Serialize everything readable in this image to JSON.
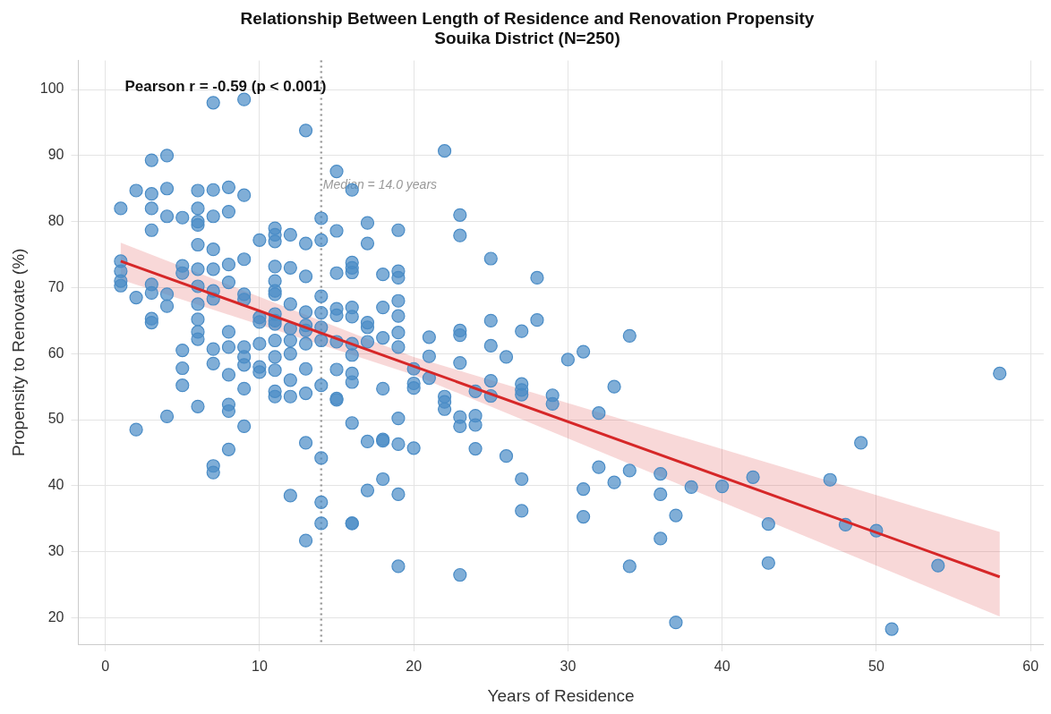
{
  "chart_data": {
    "type": "scatter",
    "title": "Relationship Between Length of Residence and Renovation Propensity",
    "subtitle": "Souika District (N=250)",
    "xlabel": "Years of Residence",
    "ylabel": "Propensity to Renovate (%)",
    "annotations": [
      "Pearson r = -0.59 (p < 0.001)"
    ],
    "xlim": [
      -1.75,
      60.85
    ],
    "ylim": [
      16,
      104.4
    ],
    "xticks": [
      0,
      10,
      20,
      30,
      40,
      50,
      60
    ],
    "yticks": [
      20,
      30,
      40,
      50,
      60,
      70,
      80,
      90,
      100
    ],
    "grid": true,
    "legend": false,
    "ref_lines": [
      {
        "axis": "x",
        "value": 14,
        "label": "Median = 14.0 years",
        "color": "#999999",
        "line_style": "dotted"
      }
    ],
    "series": [
      {
        "color": "#4a8cc6",
        "marker": "circle",
        "x": [
          1,
          1,
          1,
          1,
          1,
          2,
          2,
          2,
          3,
          3,
          3,
          3,
          3,
          3,
          3,
          3,
          4,
          4,
          4,
          4,
          4,
          4,
          5,
          5,
          5,
          5,
          5,
          5,
          6,
          6,
          6,
          6,
          6,
          6,
          6,
          6,
          6,
          6,
          6,
          6,
          7,
          7,
          7,
          7,
          7,
          7,
          7,
          7,
          7,
          7,
          7,
          8,
          8,
          8,
          8,
          8,
          8,
          8,
          8,
          8,
          8,
          9,
          9,
          9,
          9,
          9,
          9,
          9,
          9,
          9,
          9,
          10,
          10,
          10,
          10,
          10,
          10,
          11,
          11,
          11,
          11,
          11,
          11,
          11,
          11,
          11,
          11,
          11,
          11,
          11,
          11,
          11,
          12,
          12,
          12,
          12,
          12,
          12,
          12,
          12,
          12,
          13,
          13,
          13,
          13,
          13,
          13,
          13,
          13,
          13,
          13,
          13,
          14,
          14,
          14,
          14,
          14,
          14,
          14,
          14,
          14,
          14,
          15,
          15,
          15,
          15,
          15,
          15,
          15,
          15,
          15,
          16,
          16,
          16,
          16,
          16,
          16,
          16,
          16,
          16,
          16,
          16,
          16,
          16,
          17,
          17,
          17,
          17,
          17,
          17,
          17,
          18,
          18,
          18,
          18,
          18,
          18,
          18,
          19,
          19,
          19,
          19,
          19,
          19,
          19,
          19,
          19,
          19,
          19,
          20,
          20,
          20,
          20,
          21,
          21,
          21,
          22,
          22,
          22,
          22,
          23,
          23,
          23,
          23,
          23,
          23,
          23,
          23,
          24,
          24,
          24,
          24,
          25,
          25,
          25,
          25,
          25,
          26,
          26,
          27,
          27,
          27,
          27,
          27,
          27,
          28,
          28,
          29,
          29,
          30,
          31,
          31,
          31,
          32,
          32,
          33,
          33,
          34,
          34,
          34,
          36,
          36,
          36,
          37,
          37,
          38,
          40,
          42,
          43,
          43,
          47,
          48,
          49,
          50,
          51,
          54,
          58
        ],
        "values": [
          82,
          74,
          72.5,
          71,
          70.3,
          84.7,
          68.5,
          48.5,
          89.3,
          84.2,
          82,
          78.7,
          70.5,
          69.2,
          65.3,
          64.7,
          90,
          85,
          80.8,
          69,
          67.2,
          50.5,
          80.6,
          73.3,
          72.2,
          60.5,
          57.8,
          55.2,
          84.7,
          82,
          80,
          79.5,
          76.5,
          72.8,
          70.2,
          67.5,
          65.2,
          63.3,
          62.2,
          52,
          98,
          84.8,
          80.8,
          75.8,
          72.8,
          69.5,
          68.3,
          60.7,
          58.5,
          43,
          42,
          85.2,
          81.5,
          73.5,
          70.8,
          63.3,
          61,
          56.8,
          52.3,
          51.3,
          45.5,
          98.5,
          84,
          74.3,
          69,
          68.2,
          61,
          59.5,
          58.3,
          54.7,
          49,
          77.2,
          65.5,
          64.8,
          61.5,
          58,
          57.2,
          79,
          78,
          77,
          73.2,
          71,
          69.5,
          69,
          66,
          65,
          64.5,
          62,
          59.5,
          57.5,
          54.3,
          53.5,
          78,
          73,
          67.5,
          63.8,
          62,
          60,
          56,
          53.5,
          38.5,
          93.8,
          76.7,
          71.7,
          66.3,
          64.3,
          63.5,
          61.5,
          57.7,
          54,
          46.5,
          31.7,
          80.5,
          77.2,
          68.7,
          66.2,
          64,
          62,
          55.2,
          44.2,
          37.5,
          34.3,
          87.6,
          78.6,
          72.2,
          66.8,
          65.8,
          61.8,
          57.6,
          53.2,
          53,
          84.8,
          73.8,
          73,
          72.3,
          67,
          65.6,
          61.5,
          59.8,
          57,
          55.7,
          49.5,
          34.3,
          34.3,
          79.8,
          76.7,
          64.7,
          64,
          61.8,
          46.7,
          39.3,
          72,
          67,
          62.4,
          54.7,
          47,
          46.8,
          41,
          78.7,
          72.5,
          71.5,
          68,
          65.7,
          63.2,
          61,
          50.2,
          46.3,
          38.7,
          27.8,
          57.7,
          55.5,
          54.8,
          45.7,
          62.5,
          59.6,
          56.3,
          90.7,
          53.5,
          52.7,
          51.6,
          81,
          77.9,
          63.5,
          62.8,
          58.6,
          50.4,
          49,
          26.5,
          54.3,
          50.6,
          49.2,
          45.6,
          74.4,
          65,
          61.2,
          55.9,
          53.6,
          59.5,
          44.5,
          63.4,
          55.4,
          54.5,
          53.8,
          41,
          36.2,
          71.5,
          65.1,
          53.7,
          52.4,
          59.1,
          60.3,
          39.5,
          35.3,
          51,
          42.8,
          55,
          40.5,
          62.7,
          42.3,
          27.8,
          41.8,
          38.7,
          32,
          35.5,
          19.3,
          39.8,
          39.9,
          41.3,
          34.2,
          28.3,
          40.9,
          34.1,
          46.5,
          33.2,
          18.3,
          27.9,
          57
        ]
      },
      {
        "type": "line",
        "color": "#d62728",
        "x": [
          1,
          20,
          58
        ],
        "values": [
          74,
          58.1,
          26.2
        ],
        "lower": [
          71.2,
          56.8,
          20.2
        ],
        "upper": [
          76.8,
          59.5,
          33
        ]
      }
    ]
  }
}
